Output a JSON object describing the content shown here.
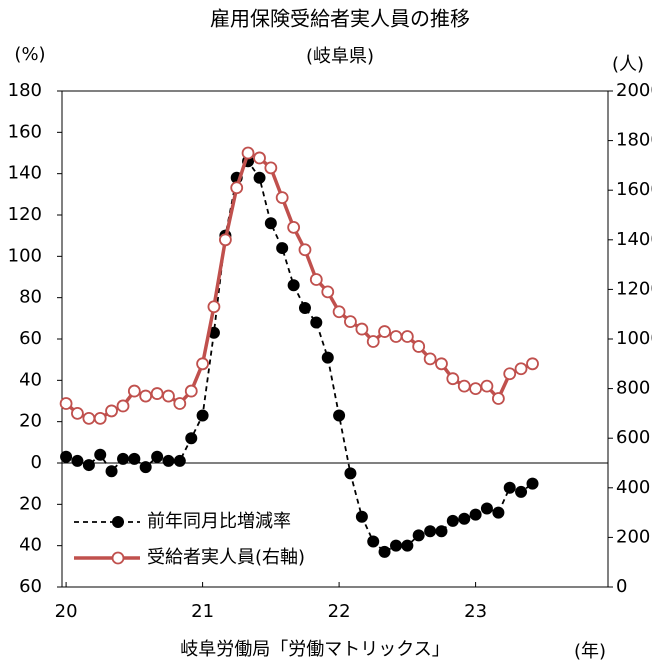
{
  "chart_data": {
    "type": "line",
    "title": "雇用保険受給者実人員の推移",
    "subtitle": "(岐阜県)",
    "y_label": "(%)",
    "y2_label": "(人)",
    "x_label": "(年)",
    "source": "岐阜労働局「労働マトリックス」",
    "x": [
      20,
      20.083,
      20.167,
      20.25,
      20.333,
      20.417,
      20.5,
      20.583,
      20.667,
      20.75,
      20.833,
      20.917,
      21,
      21.083,
      21.167,
      21.25,
      21.333,
      21.417,
      21.5,
      21.583,
      21.667,
      21.75,
      21.833,
      21.917,
      22,
      22.083,
      22.167,
      22.25,
      22.333,
      22.417,
      22.5,
      22.583,
      22.667,
      22.75,
      22.833,
      22.917,
      23,
      23.083,
      23.167,
      23.25,
      23.333,
      23.417
    ],
    "xlim": [
      19.97,
      23.97
    ],
    "xticks": [
      20,
      21,
      22,
      23
    ],
    "ylim": [
      -60,
      180
    ],
    "yticks": [
      {
        "value": -60,
        "label": "60"
      },
      {
        "value": -40,
        "label": "40"
      },
      {
        "value": -20,
        "label": "20"
      },
      0,
      20,
      40,
      60,
      80,
      100,
      120,
      140,
      160,
      180
    ],
    "y2lim": [
      0,
      2000
    ],
    "y2ticks": [
      0,
      200,
      400,
      600,
      800,
      1000,
      1200,
      1400,
      1600,
      1800,
      2000
    ],
    "series": [
      {
        "name": "前年同月比増減率",
        "color": "#000000",
        "style": "dashed",
        "values": [
          3,
          1,
          -1,
          4,
          -4,
          2,
          2,
          -2,
          3,
          1,
          1,
          12,
          23,
          63,
          110,
          138,
          146,
          138,
          116,
          104,
          86,
          75,
          68,
          51,
          23,
          -5,
          -26,
          -38,
          -43,
          -40,
          -40,
          -35,
          -33,
          -33,
          -28,
          -27,
          -25,
          -22,
          -24,
          -12,
          -14,
          -10
        ]
      },
      {
        "name": "受給者実人員(右軸)",
        "color": "#c0504d",
        "style": "solid",
        "axis": "y2",
        "values": [
          740,
          700,
          680,
          680,
          710,
          730,
          790,
          770,
          780,
          770,
          740,
          790,
          900,
          1130,
          1400,
          1610,
          1750,
          1730,
          1690,
          1570,
          1450,
          1360,
          1240,
          1190,
          1110,
          1070,
          1040,
          990,
          1030,
          1010,
          1010,
          970,
          920,
          900,
          840,
          810,
          800,
          810,
          760,
          860,
          880,
          900
        ]
      }
    ]
  }
}
